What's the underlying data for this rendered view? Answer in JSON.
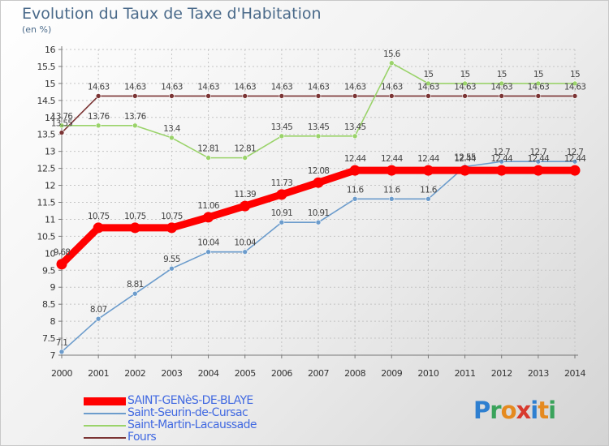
{
  "title": "Evolution du Taux de Taxe d'Habitation",
  "unit": "(en %)",
  "brand": {
    "letters": [
      {
        "ch": "P",
        "color": "#2e7fd0"
      },
      {
        "ch": "r",
        "color": "#3aa35b"
      },
      {
        "ch": "o",
        "color": "#e58a1f"
      },
      {
        "ch": "x",
        "color": "#d83a2e"
      },
      {
        "ch": "i",
        "color": "#2e7fd0"
      },
      {
        "ch": "t",
        "color": "#e58a1f"
      },
      {
        "ch": "i",
        "color": "#3aa35b"
      }
    ]
  },
  "chart_data": {
    "type": "line",
    "title": "Evolution du Taux de Taxe d'Habitation",
    "ylabel": "(en %)",
    "xlabel": "",
    "x": [
      2000,
      2001,
      2002,
      2003,
      2004,
      2005,
      2006,
      2007,
      2008,
      2009,
      2010,
      2011,
      2012,
      2013,
      2014
    ],
    "ylim": [
      7,
      16
    ],
    "yticks": [
      "7",
      "7.5",
      "8",
      "8.5",
      "9",
      "9.5",
      "10",
      "10.5",
      "11",
      "11.5",
      "12",
      "12.5",
      "13",
      "13.5",
      "14",
      "14.5",
      "15",
      "15.5",
      "16"
    ],
    "grid": true,
    "legend_position": "bottom-left",
    "series": [
      {
        "name": "SAINT-GENèS-DE-BLAYE",
        "color": "#ff0000",
        "emphasis": true,
        "values": [
          9.68,
          10.75,
          10.75,
          10.75,
          11.06,
          11.39,
          11.73,
          12.08,
          12.44,
          12.44,
          12.44,
          12.44,
          12.44,
          12.44,
          12.44
        ],
        "labels": [
          "9.68",
          "10.75",
          "10.75",
          "10.75",
          "11.06",
          "11.39",
          "11.73",
          "12.08",
          "12.44",
          "12.44",
          "12.44",
          "12.44",
          "12.44",
          "12.44",
          "12.44"
        ]
      },
      {
        "name": "Saint-Seurin-de-Cursac",
        "color": "#6c9ccc",
        "emphasis": false,
        "values": [
          7.1,
          8.07,
          8.81,
          9.55,
          10.04,
          10.04,
          10.91,
          10.91,
          11.6,
          11.6,
          11.6,
          12.55,
          12.7,
          12.7,
          12.7
        ],
        "labels": [
          "7.1",
          "8.07",
          "8.81",
          "9.55",
          "10.04",
          "10.04",
          "10.91",
          "10.91",
          "11.6",
          "11.6",
          "11.6",
          "12.55",
          "12.7",
          "12.7",
          "12.7"
        ]
      },
      {
        "name": "Saint-Martin-Lacaussade",
        "color": "#9ad36a",
        "emphasis": false,
        "values": [
          13.76,
          13.76,
          13.76,
          13.4,
          12.81,
          12.81,
          13.45,
          13.45,
          13.45,
          15.6,
          15,
          15,
          15,
          15,
          15
        ],
        "labels": [
          "13.76",
          "13.76",
          "13.76",
          "13.4",
          "12.81",
          "12.81",
          "13.45",
          "13.45",
          "13.45",
          "15.6",
          "15",
          "15",
          "15",
          "15",
          "15"
        ]
      },
      {
        "name": "Fours",
        "color": "#7b3434",
        "emphasis": false,
        "values": [
          13.55,
          14.63,
          14.63,
          14.63,
          14.63,
          14.63,
          14.63,
          14.63,
          14.63,
          14.63,
          14.63,
          14.63,
          14.63,
          14.63,
          14.63
        ],
        "labels": [
          "13.55",
          "14.63",
          "14.63",
          "14.63",
          "14.63",
          "14.63",
          "14.63",
          "14.63",
          "14.63",
          "14.63",
          "14.63",
          "14.63",
          "14.63",
          "14.63",
          "14.63"
        ]
      }
    ]
  }
}
